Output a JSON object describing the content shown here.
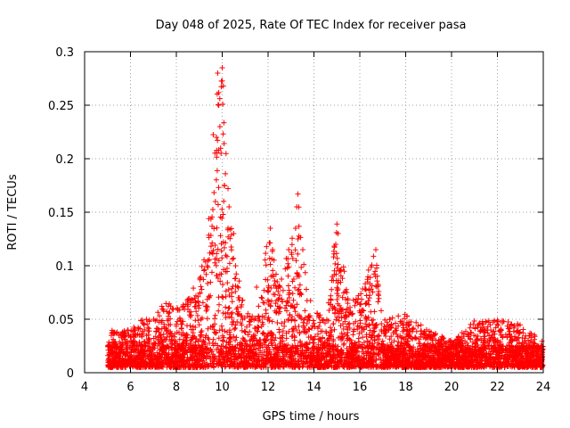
{
  "chart_data": {
    "type": "scatter",
    "title": "Day 048 of 2025, Rate Of TEC Index for receiver pasa",
    "xlabel": "GPS time / hours",
    "ylabel": "ROTI / TECUs",
    "xlim": [
      4,
      24
    ],
    "ylim": [
      0,
      0.3
    ],
    "xticks": [
      4,
      6,
      8,
      10,
      12,
      14,
      16,
      18,
      20,
      22,
      24
    ],
    "yticks": [
      0,
      0.05,
      0.1,
      0.15,
      0.2,
      0.25,
      0.3
    ],
    "xtick_labels": [
      "4",
      "6",
      "8",
      "10",
      "12",
      "14",
      "16",
      "18",
      "20",
      "22",
      "24"
    ],
    "ytick_labels": [
      "0",
      "0.05",
      "0.1",
      "0.15",
      "0.2",
      "0.25",
      "0.3"
    ],
    "grid": true,
    "marker": "+",
    "color": "#ff0000",
    "series": [
      {
        "name": "ROTI",
        "x_start": 5.0,
        "x_end": 24.0,
        "baseline_band": [
          0.005,
          0.04
        ],
        "envelope": [
          {
            "x": 5.0,
            "max": 0.025
          },
          {
            "x": 5.2,
            "max": 0.04
          },
          {
            "x": 6.0,
            "max": 0.04
          },
          {
            "x": 6.5,
            "max": 0.05
          },
          {
            "x": 7.0,
            "max": 0.05
          },
          {
            "x": 7.5,
            "max": 0.07
          },
          {
            "x": 8.0,
            "max": 0.06
          },
          {
            "x": 8.5,
            "max": 0.07
          },
          {
            "x": 9.0,
            "max": 0.09
          },
          {
            "x": 9.3,
            "max": 0.12
          },
          {
            "x": 9.6,
            "max": 0.22
          },
          {
            "x": 9.8,
            "max": 0.28
          },
          {
            "x": 10.0,
            "max": 0.285
          },
          {
            "x": 10.3,
            "max": 0.16
          },
          {
            "x": 10.6,
            "max": 0.1
          },
          {
            "x": 11.0,
            "max": 0.06
          },
          {
            "x": 11.5,
            "max": 0.05
          },
          {
            "x": 12.0,
            "max": 0.13
          },
          {
            "x": 12.5,
            "max": 0.09
          },
          {
            "x": 13.0,
            "max": 0.12
          },
          {
            "x": 13.3,
            "max": 0.167
          },
          {
            "x": 13.7,
            "max": 0.08
          },
          {
            "x": 14.0,
            "max": 0.06
          },
          {
            "x": 14.5,
            "max": 0.05
          },
          {
            "x": 15.0,
            "max": 0.139
          },
          {
            "x": 15.5,
            "max": 0.07
          },
          {
            "x": 16.0,
            "max": 0.075
          },
          {
            "x": 16.7,
            "max": 0.115
          },
          {
            "x": 17.0,
            "max": 0.05
          },
          {
            "x": 18.0,
            "max": 0.055
          },
          {
            "x": 19.0,
            "max": 0.04
          },
          {
            "x": 20.0,
            "max": 0.03
          },
          {
            "x": 21.0,
            "max": 0.05
          },
          {
            "x": 22.0,
            "max": 0.05
          },
          {
            "x": 23.0,
            "max": 0.045
          },
          {
            "x": 24.0,
            "max": 0.03
          }
        ],
        "notable_points": [
          {
            "x": 9.8,
            "y": 0.28
          },
          {
            "x": 10.0,
            "y": 0.285
          },
          {
            "x": 10.05,
            "y": 0.268
          },
          {
            "x": 9.85,
            "y": 0.25
          },
          {
            "x": 9.9,
            "y": 0.23
          },
          {
            "x": 9.75,
            "y": 0.22
          },
          {
            "x": 9.95,
            "y": 0.205
          },
          {
            "x": 10.1,
            "y": 0.175
          },
          {
            "x": 9.7,
            "y": 0.16
          },
          {
            "x": 10.3,
            "y": 0.155
          },
          {
            "x": 10.5,
            "y": 0.13
          },
          {
            "x": 12.1,
            "y": 0.135
          },
          {
            "x": 12.2,
            "y": 0.115
          },
          {
            "x": 12.9,
            "y": 0.115
          },
          {
            "x": 13.3,
            "y": 0.167
          },
          {
            "x": 13.25,
            "y": 0.155
          },
          {
            "x": 13.2,
            "y": 0.135
          },
          {
            "x": 13.3,
            "y": 0.125
          },
          {
            "x": 15.0,
            "y": 0.139
          },
          {
            "x": 15.05,
            "y": 0.13
          },
          {
            "x": 14.95,
            "y": 0.12
          },
          {
            "x": 15.1,
            "y": 0.095
          },
          {
            "x": 16.7,
            "y": 0.115
          },
          {
            "x": 16.7,
            "y": 0.081
          },
          {
            "x": 11.5,
            "y": 0.08
          },
          {
            "x": 12.4,
            "y": 0.085
          }
        ]
      }
    ]
  }
}
